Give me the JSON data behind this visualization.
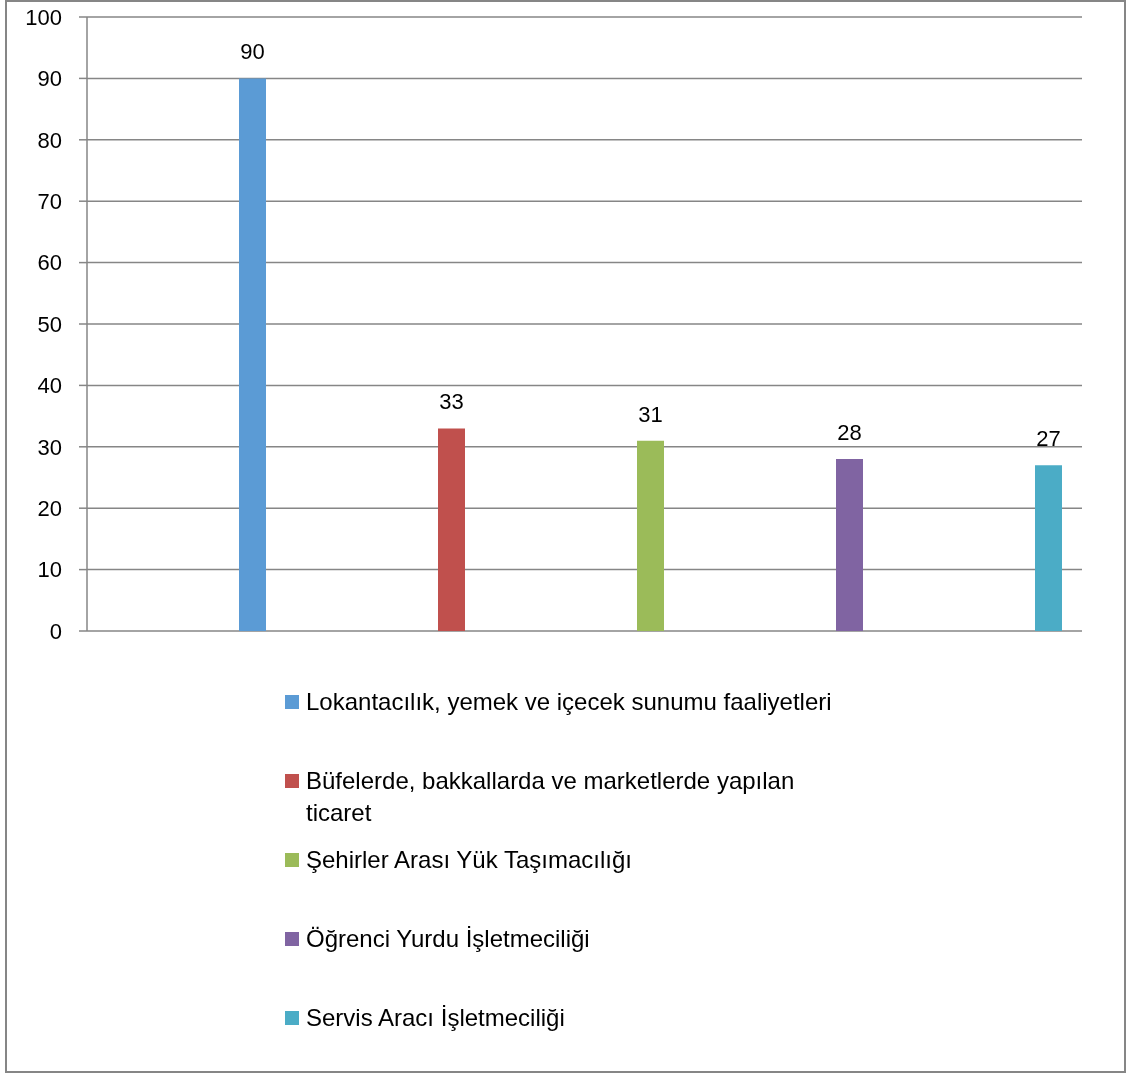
{
  "chart_data": {
    "type": "bar",
    "categories": [
      null,
      null,
      null,
      null,
      null
    ],
    "series": [
      {
        "name": "Lokantacılık, yemek ve içecek sunumu faaliyetleri",
        "color": "#5b9bd5",
        "values": [
          90,
          null,
          null,
          null,
          null
        ]
      },
      {
        "name": "Büfelerde, bakkallarda ve marketlerde yapılan ticaret",
        "color": "#c0504d",
        "values": [
          null,
          33,
          null,
          null,
          null
        ]
      },
      {
        "name": "Şehirler Arası Yük Taşımacılığı",
        "color": "#9bbb59",
        "values": [
          null,
          null,
          31,
          null,
          null
        ]
      },
      {
        "name": "Öğrenci Yurdu İşletmeciliği",
        "color": "#8064a2",
        "values": [
          null,
          null,
          null,
          28,
          null
        ]
      },
      {
        "name": "Servis Aracı İşletmeciliği",
        "color": "#4bacc6",
        "values": [
          null,
          null,
          null,
          null,
          27
        ]
      }
    ],
    "ylim": [
      0,
      100
    ],
    "yticks": [
      0,
      10,
      20,
      30,
      40,
      50,
      60,
      70,
      80,
      90,
      100
    ],
    "grid": "y",
    "legend": "bottom",
    "data_labels": true
  }
}
